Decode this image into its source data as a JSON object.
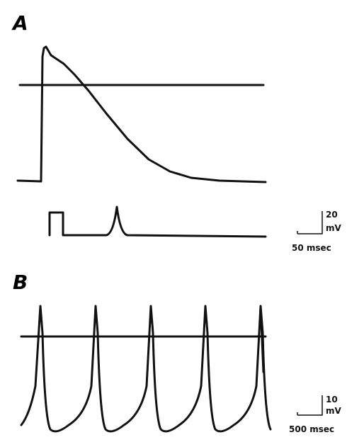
{
  "panels": [
    {
      "label": "A",
      "scale_bar": {
        "vertical": "20",
        "unit": "mV",
        "horizontal": "50 msec"
      }
    },
    {
      "label": "B",
      "scale_bar": {
        "vertical": "10",
        "unit": "mV",
        "horizontal": "500 msec"
      }
    }
  ]
}
